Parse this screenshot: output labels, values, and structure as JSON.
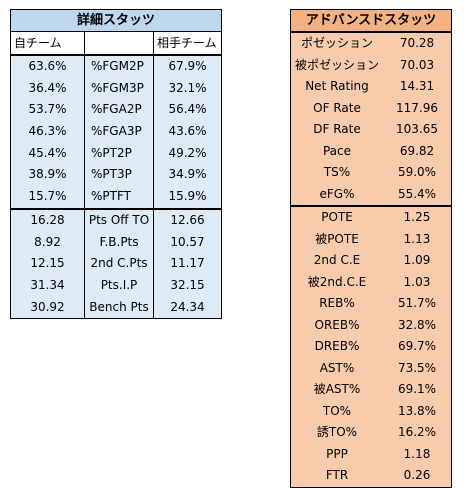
{
  "detailed": {
    "title": "詳細スタッツ",
    "headers": {
      "own": "自チーム",
      "stat": "",
      "opp": "相手チーム"
    },
    "upper_rows": [
      {
        "own": "63.6%",
        "stat": "%FGM2P",
        "opp": "67.9%"
      },
      {
        "own": "36.4%",
        "stat": "%FGM3P",
        "opp": "32.1%"
      },
      {
        "own": "53.7%",
        "stat": "%FGA2P",
        "opp": "56.4%"
      },
      {
        "own": "46.3%",
        "stat": "%FGA3P",
        "opp": "43.6%"
      },
      {
        "own": "45.4%",
        "stat": "%PT2P",
        "opp": "49.2%"
      },
      {
        "own": "38.9%",
        "stat": "%PT3P",
        "opp": "34.9%"
      },
      {
        "own": "15.7%",
        "stat": "%PTFT",
        "opp": "15.9%"
      }
    ],
    "lower_rows": [
      {
        "own": "16.28",
        "stat": "Pts Off TO",
        "opp": "12.66"
      },
      {
        "own": "8.92",
        "stat": "F.B.Pts",
        "opp": "10.57"
      },
      {
        "own": "12.15",
        "stat": "2nd C.Pts",
        "opp": "11.17"
      },
      {
        "own": "31.34",
        "stat": "Pts.I.P",
        "opp": "32.15"
      },
      {
        "own": "30.92",
        "stat": "Bench Pts",
        "opp": "24.34"
      }
    ]
  },
  "advanced": {
    "title": "アドバンスドスタッツ",
    "upper_rows": [
      {
        "label": "ポゼッション",
        "value": "70.28"
      },
      {
        "label": "被ポゼッション",
        "value": "70.03"
      },
      {
        "label": "Net Rating",
        "value": "14.31"
      },
      {
        "label": "OF Rate",
        "value": "117.96"
      },
      {
        "label": "DF Rate",
        "value": "103.65"
      },
      {
        "label": "Pace",
        "value": "69.82"
      },
      {
        "label": "TS%",
        "value": "59.0%"
      },
      {
        "label": "eFG%",
        "value": "55.4%"
      }
    ],
    "lower_rows": [
      {
        "label": "POTE",
        "value": "1.25"
      },
      {
        "label": "被POTE",
        "value": "1.13"
      },
      {
        "label": "2nd C.E",
        "value": "1.09"
      },
      {
        "label": "被2nd.C.E",
        "value": "1.03"
      },
      {
        "label": "REB%",
        "value": "51.7%"
      },
      {
        "label": "OREB%",
        "value": "32.8%"
      },
      {
        "label": "DREB%",
        "value": "69.7%"
      },
      {
        "label": "AST%",
        "value": "73.5%"
      },
      {
        "label": "被AST%",
        "value": "69.1%"
      },
      {
        "label": "TO%",
        "value": "13.8%"
      },
      {
        "label": "誘TO%",
        "value": "16.2%"
      },
      {
        "label": "PPP",
        "value": "1.18"
      },
      {
        "label": "FTR",
        "value": "0.26"
      }
    ]
  },
  "colors": {
    "detailed_title_bg": "#bdd7ee",
    "detailed_body_bg": "#ddebf7",
    "advanced_title_bg": "#f4b183",
    "advanced_body_bg": "#f8cbad"
  }
}
